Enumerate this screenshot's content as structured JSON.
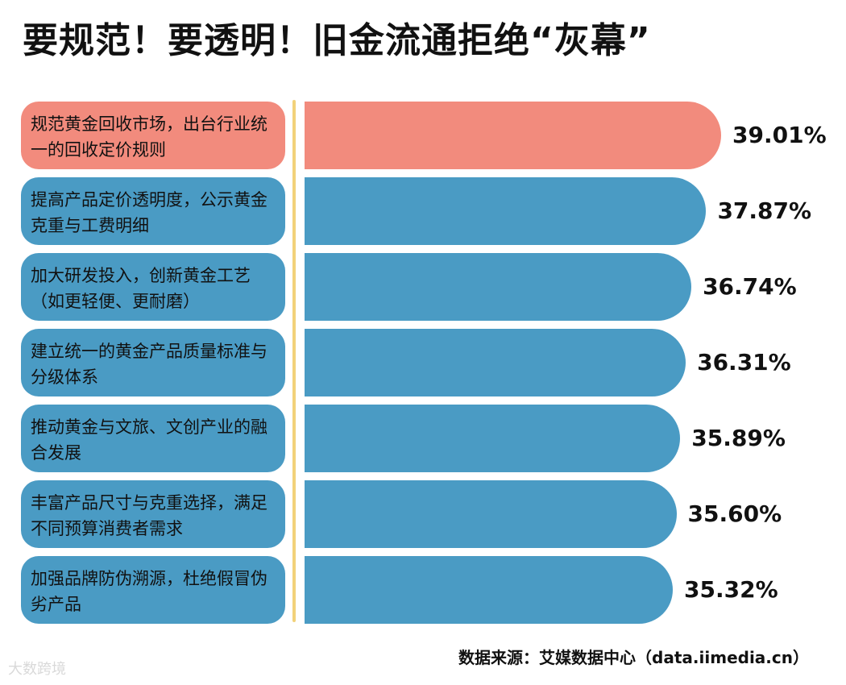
{
  "title": "要规范！要透明！旧金流通拒绝“灰幕”",
  "source": "数据来源：艾媒数据中心（data.iimedia.cn）",
  "watermark": "大数跨境",
  "colors": {
    "highlight": "#f28b7d",
    "bar": "#4a9bc4",
    "divider": "#f2d27a"
  },
  "chart_data": {
    "type": "bar",
    "orientation": "horizontal",
    "title": "要规范！要透明！旧金流通拒绝“灰幕”",
    "unit": "%",
    "categories": [
      "规范黄金回收市场，出台行业统一的回收定价规则",
      "提高产品定价透明度，公示黄金克重与工费明细",
      "加大研发投入，创新黄金工艺（如更轻便、更耐磨）",
      "建立统一的黄金产品质量标准与分级体系",
      "推动黄金与文旅、文创产业的融合发展",
      "丰富产品尺寸与克重选择，满足不同预算消费者需求",
      "加强品牌防伪溯源，杜绝假冒伪劣产品"
    ],
    "values": [
      39.01,
      37.87,
      36.74,
      36.31,
      35.89,
      35.6,
      35.32
    ],
    "value_labels": [
      "39.01%",
      "37.87%",
      "36.74%",
      "36.31%",
      "35.89%",
      "35.60%",
      "35.32%"
    ],
    "highlight_index": 0
  }
}
